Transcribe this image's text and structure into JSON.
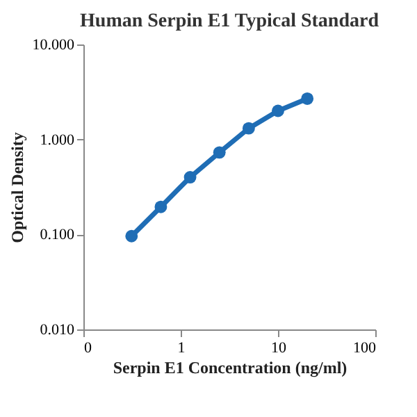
{
  "chart_data": {
    "type": "line",
    "title": "Human Serpin E1 Typical Standard",
    "xlabel": "Serpin E1 Concentration (ng/ml)",
    "ylabel": "Optical Density",
    "x": [
      0.3125,
      0.625,
      1.25,
      2.5,
      5,
      10,
      20
    ],
    "series": [
      {
        "color": "#1f6db5",
        "values": [
          0.096,
          0.195,
          0.4,
          0.73,
          1.31,
          2.0,
          2.69
        ]
      }
    ],
    "log": "xy",
    "xlim": [
      0.1,
      100
    ],
    "xticks": [
      {
        "value": 0.1,
        "label": "0"
      },
      1,
      10,
      100
    ],
    "ylim": [
      0.01,
      10
    ],
    "yticks": [
      {
        "value": 0.01,
        "label": "0.010"
      },
      {
        "value": 0.1,
        "label": "0.100"
      },
      {
        "value": 1,
        "label": "1.000"
      },
      {
        "value": 10,
        "label": "10.000"
      }
    ],
    "grid": false,
    "marker": "circle",
    "line_style": "solid"
  }
}
